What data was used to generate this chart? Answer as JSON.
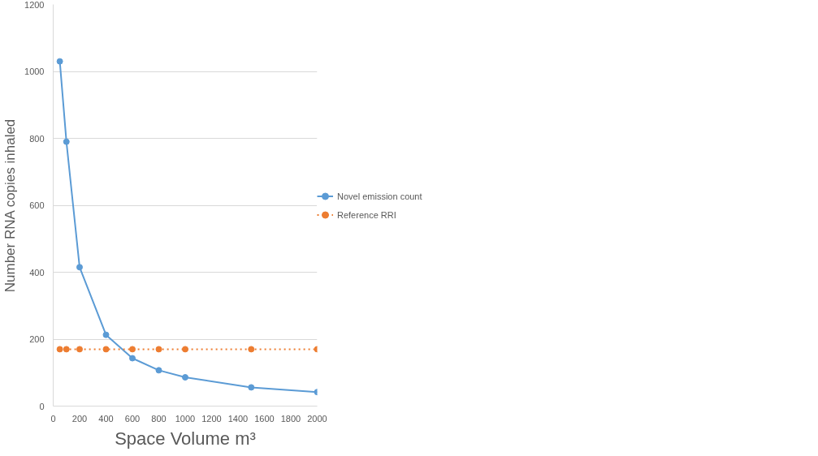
{
  "chart_data": {
    "type": "line",
    "xlabel": "Space Volume m³",
    "ylabel": "Number RNA copies inhaled",
    "x": [
      50,
      100,
      200,
      400,
      600,
      800,
      1000,
      1500,
      2000
    ],
    "series": [
      {
        "name": "Novel emission count",
        "color": "#5b9bd5",
        "line_style": "solid",
        "values": [
          1030,
          790,
          415,
          213,
          143,
          107,
          86,
          56,
          42
        ]
      },
      {
        "name": "Reference RRI",
        "color": "#ed7d31",
        "line_style": "dotted",
        "values": [
          170,
          170,
          170,
          170,
          170,
          170,
          170,
          170,
          170
        ]
      }
    ],
    "xlim": [
      0,
      2000
    ],
    "ylim": [
      0,
      1200
    ],
    "xticks": [
      0,
      200,
      400,
      600,
      800,
      1000,
      1200,
      1400,
      1600,
      1800,
      2000
    ],
    "yticks": [
      0,
      200,
      400,
      600,
      800,
      1000,
      1200
    ],
    "grid": "y",
    "legend": "right",
    "marker": "circle"
  }
}
